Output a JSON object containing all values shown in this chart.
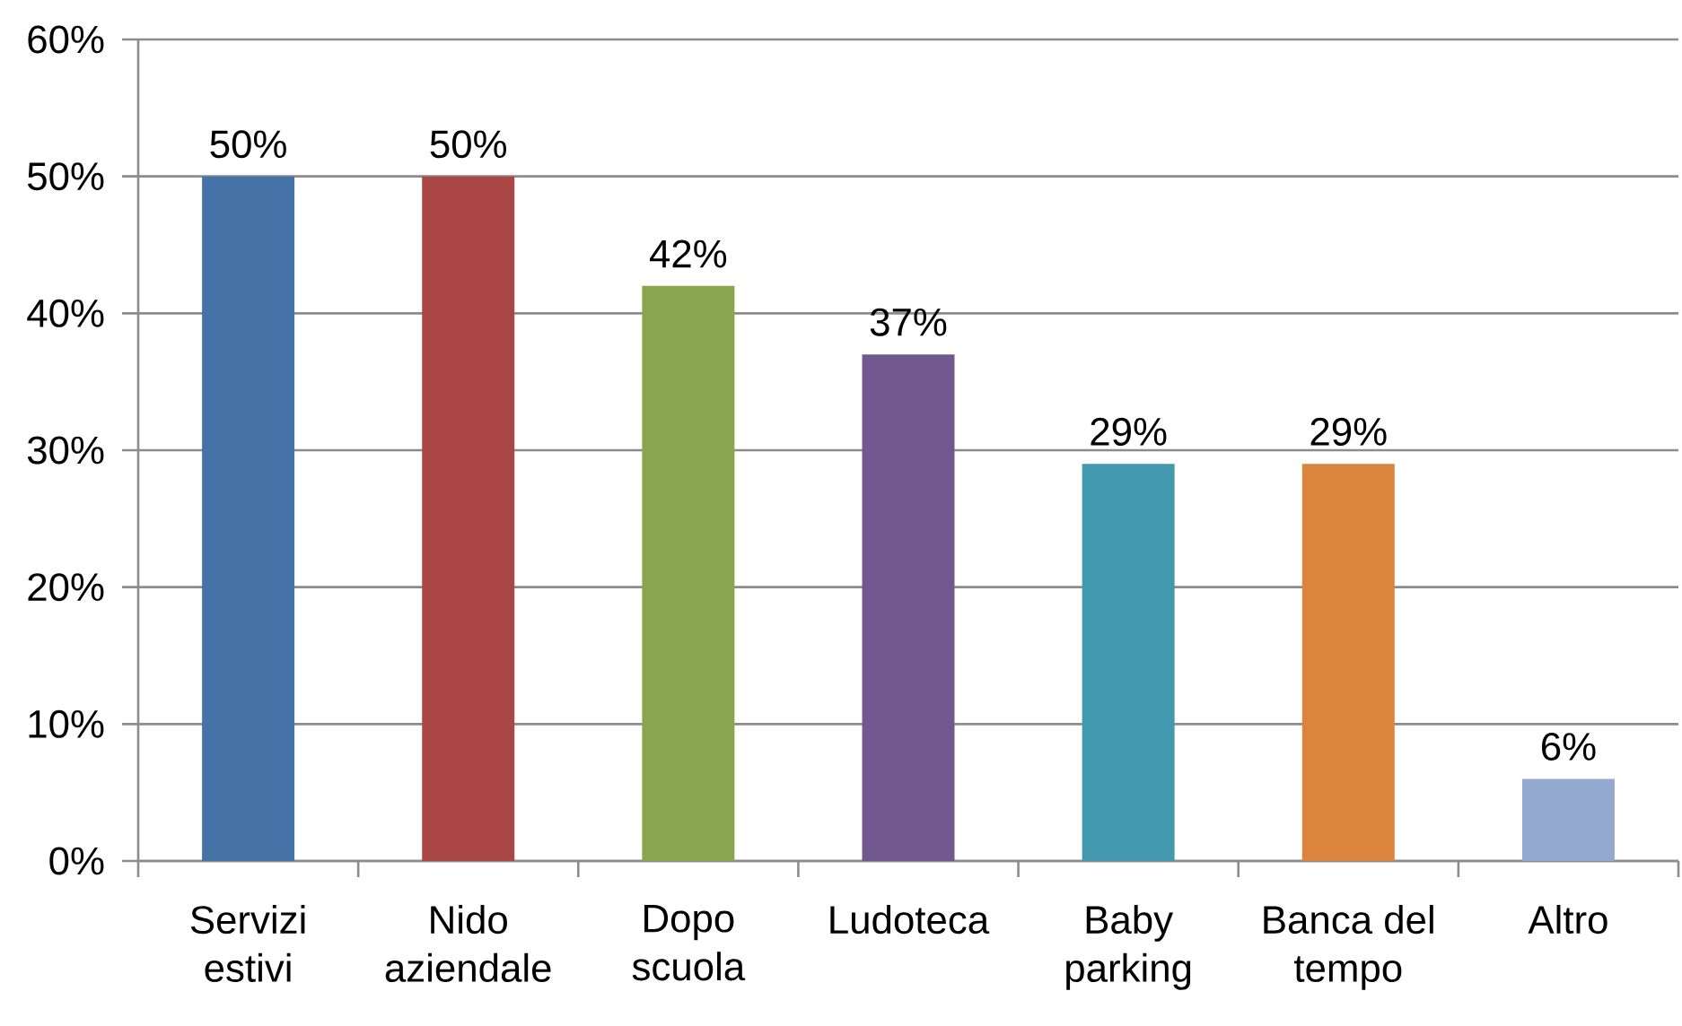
{
  "chart_data": {
    "type": "bar",
    "categories": [
      "Servizi estivi",
      "Nido aziendale",
      "Dopo scuola",
      "Ludoteca",
      "Baby parking",
      "Banca del tempo",
      "Altro"
    ],
    "values": [
      50,
      50,
      42,
      37,
      29,
      29,
      6
    ],
    "colors": [
      "#4572a7",
      "#aa4643",
      "#89a54e",
      "#71588f",
      "#4198af",
      "#db843d",
      "#93a9cf"
    ],
    "value_labels": [
      "50%",
      "50%",
      "42%",
      "37%",
      "29%",
      "29%",
      "6%"
    ],
    "ylim": [
      0,
      60
    ],
    "yticks": [
      {
        "value": 0,
        "label": "0%"
      },
      {
        "value": 10,
        "label": "10%"
      },
      {
        "value": 20,
        "label": "20%"
      },
      {
        "value": 30,
        "label": "30%"
      },
      {
        "value": 40,
        "label": "40%"
      },
      {
        "value": 50,
        "label": "50%"
      },
      {
        "value": 60,
        "label": "60%"
      }
    ],
    "grid": "y"
  }
}
